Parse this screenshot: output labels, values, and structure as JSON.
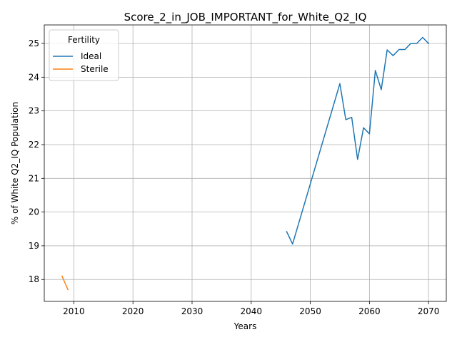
{
  "chart_data": {
    "type": "line",
    "title": "Score_2_in_JOB_IMPORTANT_for_White_Q2_IQ",
    "xlabel": "Years",
    "ylabel": "% of White Q2_IQ Population",
    "xlim": [
      2005,
      2073
    ],
    "ylim": [
      17.35,
      25.55
    ],
    "xticks": [
      2010,
      2020,
      2030,
      2040,
      2050,
      2060,
      2070
    ],
    "yticks": [
      18,
      19,
      20,
      21,
      22,
      23,
      24,
      25
    ],
    "grid": true,
    "legend": {
      "title": "Fertility",
      "position": "top-left"
    },
    "series": [
      {
        "name": "Ideal",
        "color": "#1f77b4",
        "x": [
          2046,
          2047,
          2055,
          2056,
          2057,
          2058,
          2059,
          2060,
          2061,
          2062,
          2063,
          2064,
          2065,
          2066,
          2067,
          2068,
          2069,
          2070
        ],
        "y": [
          19.42,
          19.05,
          23.81,
          22.74,
          22.81,
          21.56,
          22.5,
          22.32,
          24.2,
          23.63,
          24.81,
          24.64,
          24.82,
          24.82,
          25.0,
          25.0,
          25.18,
          25.0
        ]
      },
      {
        "name": "Sterile",
        "color": "#ff7f0e",
        "x": [
          2008,
          2009
        ],
        "y": [
          18.1,
          17.7
        ]
      }
    ]
  }
}
